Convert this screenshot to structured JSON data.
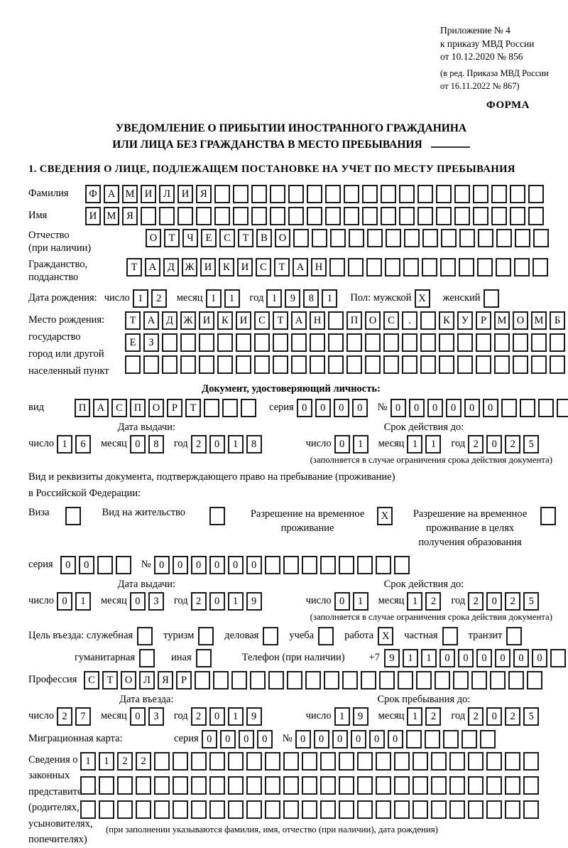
{
  "colors": {
    "ink": "#000000",
    "paper": "#ffffff"
  },
  "header": {
    "appendix_lines": [
      "Приложение № 4",
      "к приказу МВД России",
      "от 10.12.2020 № 856"
    ],
    "note_lines": [
      "(в ред. Приказа МВД России",
      "от 16.11.2022 № 867)"
    ],
    "forma": "ФОРМА"
  },
  "title": {
    "line1": "УВЕДОМЛЕНИЕ О ПРИБЫТИИ ИНОСТРАННОГО ГРАЖДАНИНА",
    "line2": "ИЛИ ЛИЦА БЕЗ ГРАЖДАНСТВА В МЕСТО ПРЕБЫВАНИЯ"
  },
  "section1": {
    "heading": "1. СВЕДЕНИЯ О ЛИЦЕ, ПОДЛЕЖАЩЕМ ПОСТАНОВКЕ НА УЧЕТ ПО МЕСТУ ПРЕБЫВАНИЯ"
  },
  "labels": {
    "surname": "Фамилия",
    "given_name": "Имя",
    "patronymic_l1": "Отчество",
    "patronymic_l2": "(при наличии)",
    "citizenship_l1": "Гражданство,",
    "citizenship_l2": "подданство",
    "birth_date": "Дата рождения:",
    "day": "число",
    "month": "месяц",
    "year": "год",
    "sex_male": "Пол: мужской",
    "sex_female": "женский",
    "birthplace_l1": "Место рождения:",
    "birthplace_l2": "государство",
    "birthplace_l3": "город или другой",
    "birthplace_l4": "населенный пункт",
    "identity_doc_heading": "Документ, удостоверяющий личность:",
    "doc_type": "вид",
    "series": "серия",
    "number_sign": "№",
    "issue_date": "Дата выдачи:",
    "valid_until": "Срок действия до:",
    "valid_note": "(заполняется в случае ограничения срока действия документа)",
    "resid_doc_l1": "Вид и реквизиты документа, подтверждающего право на пребывание (проживание)",
    "resid_doc_l2": "в Российской Федерации:",
    "visa": "Виза",
    "residence_permit": "Вид на жительство",
    "temp_permit_l1": "Разрешение на временное",
    "temp_permit_l2": "проживание",
    "edu_permit_l1": "Разрешение на временное",
    "edu_permit_l2": "проживание в целях",
    "edu_permit_l3": "получения образования",
    "purpose": "Цель въезда: служебная",
    "tourism": "туризм",
    "business": "деловая",
    "study": "учеба",
    "work": "работа",
    "private": "частная",
    "transit": "транзит",
    "humanitarian": "гуманитарная",
    "other": "иная",
    "phone": "Телефон (при наличии)",
    "phone_prefix": "+7",
    "profession": "Профессия",
    "entry_date": "Дата въезда:",
    "stay_until": "Срок пребывания до:",
    "migration_card": "Миграционная карта:",
    "representatives_l1": "Сведения о",
    "representatives_l2": "законных",
    "representatives_l3": "представителях",
    "representatives_l4": "(родителях,",
    "representatives_l5": "усыновителях,",
    "representatives_l6": "попечителях)",
    "representatives_note": "(при заполнении указываются фамилия, имя, отчество (при наличии), дата рождения)"
  },
  "fields": {
    "surname": {
      "v": "ФАМИЛИЯ",
      "n": 25
    },
    "given_name": {
      "v": "ИМЯ",
      "n": 25
    },
    "patronymic": {
      "v": "ОТЧЕСТВО",
      "n": 22
    },
    "citizenship": {
      "v": "ТАДЖИКИСТАН",
      "n": 23
    },
    "birth_day": {
      "v": "12",
      "n": 2
    },
    "birth_month": {
      "v": "11",
      "n": 2
    },
    "birth_year": {
      "v": "1981",
      "n": 4
    },
    "sex_male_cb": {
      "v": "X",
      "n": 1
    },
    "sex_female_cb": {
      "v": "",
      "n": 1
    },
    "birthplace_row1": {
      "v": "ТАДЖИКИСТАН ПОС. КУРМОМБ",
      "n": 24
    },
    "birthplace_row2": {
      "v": "ЕЗ",
      "n": 24
    },
    "birthplace_row3": {
      "v": "",
      "n": 24
    },
    "doc_type": {
      "v": "ПАСПОРТ",
      "n": 10
    },
    "doc_series": {
      "v": "0000",
      "n": 4
    },
    "doc_number": {
      "v": "000000",
      "n": 11
    },
    "doc_issue_day": {
      "v": "16",
      "n": 2
    },
    "doc_issue_month": {
      "v": "08",
      "n": 2
    },
    "doc_issue_year": {
      "v": "2018",
      "n": 4
    },
    "doc_valid_day": {
      "v": "01",
      "n": 2
    },
    "doc_valid_month": {
      "v": "11",
      "n": 2
    },
    "doc_valid_year": {
      "v": "2025",
      "n": 4
    },
    "visa_cb": {
      "v": "",
      "n": 1
    },
    "residence_cb": {
      "v": "",
      "n": 1
    },
    "temp_cb": {
      "v": "X",
      "n": 1
    },
    "edu_cb": {
      "v": "",
      "n": 1
    },
    "res_series": {
      "v": "00",
      "n": 4
    },
    "res_number": {
      "v": "000000",
      "n": 14
    },
    "res_issue_day": {
      "v": "01",
      "n": 2
    },
    "res_issue_month": {
      "v": "03",
      "n": 2
    },
    "res_issue_year": {
      "v": "2019",
      "n": 4
    },
    "res_valid_day": {
      "v": "01",
      "n": 2
    },
    "res_valid_month": {
      "v": "12",
      "n": 2
    },
    "res_valid_year": {
      "v": "2025",
      "n": 4
    },
    "purpose_official_cb": {
      "v": "",
      "n": 1
    },
    "purpose_tourism_cb": {
      "v": "",
      "n": 1
    },
    "purpose_business_cb": {
      "v": "",
      "n": 1
    },
    "purpose_study_cb": {
      "v": "",
      "n": 1
    },
    "purpose_work_cb": {
      "v": "X",
      "n": 1
    },
    "purpose_private_cb": {
      "v": "",
      "n": 1
    },
    "purpose_transit_cb": {
      "v": "",
      "n": 1
    },
    "purpose_humanitarian_cb": {
      "v": "",
      "n": 1
    },
    "purpose_other_cb": {
      "v": "",
      "n": 1
    },
    "phone": {
      "v": "911000000",
      "n": 10
    },
    "profession": {
      "v": "СТОЛЯР",
      "n": 25
    },
    "entry_day": {
      "v": "27",
      "n": 2
    },
    "entry_month": {
      "v": "03",
      "n": 2
    },
    "entry_year": {
      "v": "2019",
      "n": 4
    },
    "stay_day": {
      "v": "19",
      "n": 2
    },
    "stay_month": {
      "v": "12",
      "n": 2
    },
    "stay_year": {
      "v": "2025",
      "n": 4
    },
    "mig_series": {
      "v": "0000",
      "n": 4
    },
    "mig_number": {
      "v": "000000",
      "n": 11
    },
    "rep_row1": {
      "v": "1122",
      "n": 25
    },
    "rep_row2": {
      "v": "",
      "n": 25
    },
    "rep_row3": {
      "v": "",
      "n": 25
    }
  }
}
